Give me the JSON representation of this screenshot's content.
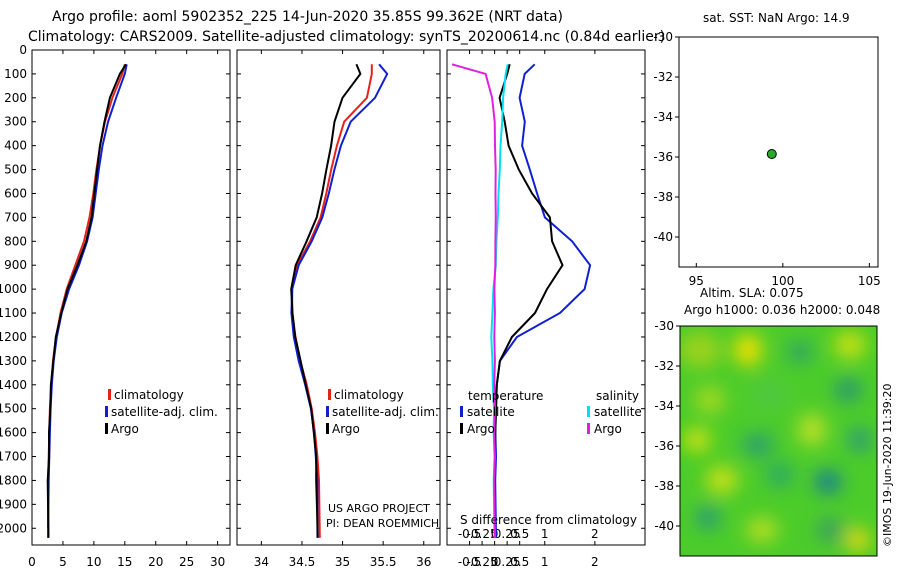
{
  "header": {
    "line1": "Argo profile: aoml 5902352_225 14-Jun-2020 35.85S 99.362E (NRT data)",
    "line2": "Climatology: CARS2009. Satellite-adjusted climatology: synTS_20200614.nc (0.84d earlier)"
  },
  "colors": {
    "climatology": "#e8201a",
    "satellite": "#1020d0",
    "argo": "#000000",
    "sat_temp": "#00e0f0",
    "salinity_argo": "#e020e0",
    "map_point": "#2aa82a"
  },
  "credits": {
    "project": "US ARGO PROJECT",
    "pi": "PI: DEAN ROEMMICH",
    "imos": "©IMOS 19-Jun-2020 11:39:20"
  },
  "depth_ticks": [
    "0",
    "100",
    "200",
    "300",
    "400",
    "500",
    "600",
    "700",
    "800",
    "900",
    "1000",
    "1100",
    "1200",
    "1300",
    "1400",
    "1500",
    "1600",
    "1700",
    "1800",
    "1900",
    "2000"
  ],
  "legend_ts": {
    "climatology": "climatology",
    "satellite": "satellite-adj. clim.",
    "argo": "Argo"
  },
  "legend_diff": {
    "temperature": "temperature",
    "salinity": "salinity",
    "t_sat": "satellite",
    "t_argo": "Argo",
    "s_sat": "satellite",
    "s_argo": "Argo"
  },
  "map_sst": {
    "title": "sat. SST: NaN Argo: 14.9",
    "xticks": [
      "95",
      "100",
      "105"
    ],
    "yticks": [
      "-30",
      "-32",
      "-34",
      "-36",
      "-38",
      "-40"
    ]
  },
  "map_sla": {
    "title1": "Altim. SLA: 0.075",
    "title2": "Argo h1000: 0.036 h2000: 0.048",
    "yticks": [
      "-30",
      "-32",
      "-34",
      "-36",
      "-38",
      "-40"
    ]
  },
  "chart_data": [
    {
      "type": "line",
      "name": "temperature-profile",
      "xlabel": "",
      "ylabel": "depth",
      "xlim": [
        0,
        32
      ],
      "ylim": [
        2070,
        0
      ],
      "xticks": [
        "0",
        "5",
        "10",
        "15",
        "20",
        "25",
        "30"
      ],
      "series": [
        {
          "name": "climatology",
          "x": [
            15.0,
            14.6,
            13.0,
            11.8,
            11.0,
            10.4,
            9.9,
            9.3,
            8.4,
            7.0,
            5.6,
            4.6,
            3.9,
            3.4,
            3.1,
            2.9,
            2.8,
            2.7,
            2.6,
            2.6
          ],
          "y": [
            60,
            100,
            200,
            300,
            400,
            500,
            600,
            700,
            800,
            900,
            1000,
            1100,
            1200,
            1300,
            1400,
            1500,
            1600,
            1700,
            1800,
            2000
          ]
        },
        {
          "name": "satellite-adj. clim.",
          "x": [
            15.3,
            15.0,
            13.6,
            12.3,
            11.4,
            10.8,
            10.3,
            9.8,
            8.9,
            7.6,
            6.0,
            4.8,
            4.0,
            3.5,
            3.2,
            3.0,
            2.9,
            2.8,
            2.7,
            2.6
          ],
          "y": [
            60,
            100,
            200,
            300,
            400,
            500,
            600,
            700,
            800,
            900,
            1000,
            1100,
            1200,
            1300,
            1400,
            1500,
            1600,
            1700,
            1800,
            2040
          ]
        },
        {
          "name": "Argo",
          "x": [
            15.2,
            14.2,
            12.6,
            11.7,
            11.0,
            10.5,
            10.1,
            9.6,
            8.8,
            7.3,
            5.8,
            4.7,
            3.9,
            3.4,
            3.1,
            2.9,
            2.8,
            2.7,
            2.6,
            2.6
          ],
          "y": [
            60,
            100,
            200,
            300,
            400,
            500,
            600,
            700,
            800,
            900,
            1000,
            1100,
            1200,
            1300,
            1400,
            1500,
            1600,
            1700,
            1800,
            2040
          ]
        }
      ]
    },
    {
      "type": "line",
      "name": "salinity-profile",
      "xlabel": "",
      "ylabel": "depth",
      "xlim": [
        33.7,
        36.2
      ],
      "ylim": [
        2070,
        0
      ],
      "xticks": [
        "34",
        "34.5",
        "35",
        "35.5",
        "36"
      ],
      "series": [
        {
          "name": "climatology",
          "x": [
            35.36,
            35.36,
            35.3,
            35.02,
            34.93,
            34.86,
            34.8,
            34.73,
            34.6,
            34.44,
            34.38,
            34.38,
            34.42,
            34.48,
            34.56,
            34.62,
            34.66,
            34.69,
            34.71,
            34.72
          ],
          "y": [
            60,
            100,
            200,
            300,
            400,
            500,
            600,
            700,
            800,
            900,
            1000,
            1100,
            1200,
            1300,
            1400,
            1500,
            1600,
            1700,
            1800,
            2040
          ]
        },
        {
          "name": "satellite-adj. clim.",
          "x": [
            35.45,
            35.55,
            35.4,
            35.1,
            34.98,
            34.9,
            34.83,
            34.75,
            34.62,
            34.46,
            34.38,
            34.37,
            34.4,
            34.46,
            34.54,
            34.61,
            34.65,
            34.67,
            34.69,
            34.69
          ],
          "y": [
            60,
            100,
            200,
            300,
            400,
            500,
            600,
            700,
            800,
            900,
            1000,
            1100,
            1200,
            1300,
            1400,
            1500,
            1600,
            1700,
            1800,
            2040
          ]
        },
        {
          "name": "Argo",
          "x": [
            35.17,
            35.22,
            35.0,
            34.9,
            34.86,
            34.8,
            34.75,
            34.68,
            34.56,
            34.42,
            34.37,
            34.38,
            34.42,
            34.48,
            34.55,
            34.61,
            34.65,
            34.67,
            34.68,
            34.69
          ],
          "y": [
            60,
            100,
            200,
            300,
            400,
            500,
            600,
            700,
            800,
            900,
            1000,
            1100,
            1200,
            1300,
            1400,
            1500,
            1600,
            1700,
            1800,
            2040
          ]
        }
      ]
    },
    {
      "type": "line",
      "name": "difference-from-climatology",
      "xlabel": "S difference from climatology",
      "xlim": [
        -0.95,
        3.0
      ],
      "ylim": [
        2070,
        0
      ],
      "xticks": [
        "-0.5",
        "-0.25",
        "0",
        "0.25",
        "0.5",
        "1",
        "2"
      ],
      "xtick_values": [
        -0.5,
        -0.25,
        0,
        0.25,
        0.5,
        1,
        2
      ],
      "series": [
        {
          "name": "temperature satellite",
          "x": [
            0.8,
            0.6,
            0.5,
            0.6,
            0.55,
            0.7,
            0.85,
            1.0,
            1.55,
            1.9,
            1.8,
            1.3,
            0.45,
            0.1,
            0.05,
            0.02,
            0.02,
            0.02,
            0.02,
            0.02
          ],
          "y": [
            60,
            100,
            200,
            300,
            400,
            500,
            600,
            700,
            800,
            900,
            1000,
            1100,
            1200,
            1300,
            1400,
            1500,
            1600,
            1700,
            1800,
            2040
          ]
        },
        {
          "name": "temperature Argo",
          "x": [
            0.3,
            0.25,
            0.1,
            0.2,
            0.28,
            0.48,
            0.75,
            1.1,
            1.15,
            1.35,
            1.05,
            0.8,
            0.35,
            0.1,
            0.05,
            0.02,
            0.02,
            0.0,
            0.0,
            0.0
          ],
          "y": [
            60,
            100,
            200,
            300,
            400,
            500,
            600,
            700,
            800,
            900,
            1000,
            1100,
            1200,
            1300,
            1400,
            1500,
            1600,
            1700,
            1800,
            2040
          ]
        },
        {
          "name": "salinity satellite",
          "x": [
            0.26,
            0.22,
            0.17,
            0.15,
            0.12,
            0.1,
            0.08,
            0.06,
            0.04,
            0.02,
            -0.02,
            -0.05,
            -0.06,
            -0.05,
            -0.03,
            -0.02,
            -0.01,
            -0.01,
            -0.01,
            -0.01
          ],
          "y": [
            60,
            100,
            200,
            300,
            400,
            500,
            600,
            700,
            800,
            900,
            1000,
            1100,
            1200,
            1300,
            1400,
            1500,
            1600,
            1700,
            1800,
            2040
          ]
        },
        {
          "name": "salinity Argo",
          "x": [
            -0.85,
            -0.18,
            -0.05,
            0.0,
            0.01,
            0.02,
            0.02,
            0.02,
            0.02,
            0.01,
            0.0,
            0.0,
            0.0,
            0.0,
            0.0,
            0.0,
            0.0,
            0.0,
            0.0,
            0.0
          ],
          "y": [
            60,
            100,
            200,
            300,
            400,
            500,
            600,
            700,
            800,
            900,
            1000,
            1100,
            1200,
            1300,
            1400,
            1500,
            1600,
            1700,
            1800,
            2040
          ]
        }
      ]
    },
    {
      "type": "scatter",
      "name": "sst-location-map",
      "xlim": [
        94,
        105.5
      ],
      "ylim": [
        -41.5,
        -30
      ],
      "points": [
        {
          "lon": 99.362,
          "lat": -35.85
        }
      ]
    },
    {
      "type": "heatmap",
      "name": "altimeter-sla-map",
      "ylim": [
        -41.5,
        -30
      ],
      "colormap": "green-yellow-blue"
    }
  ]
}
